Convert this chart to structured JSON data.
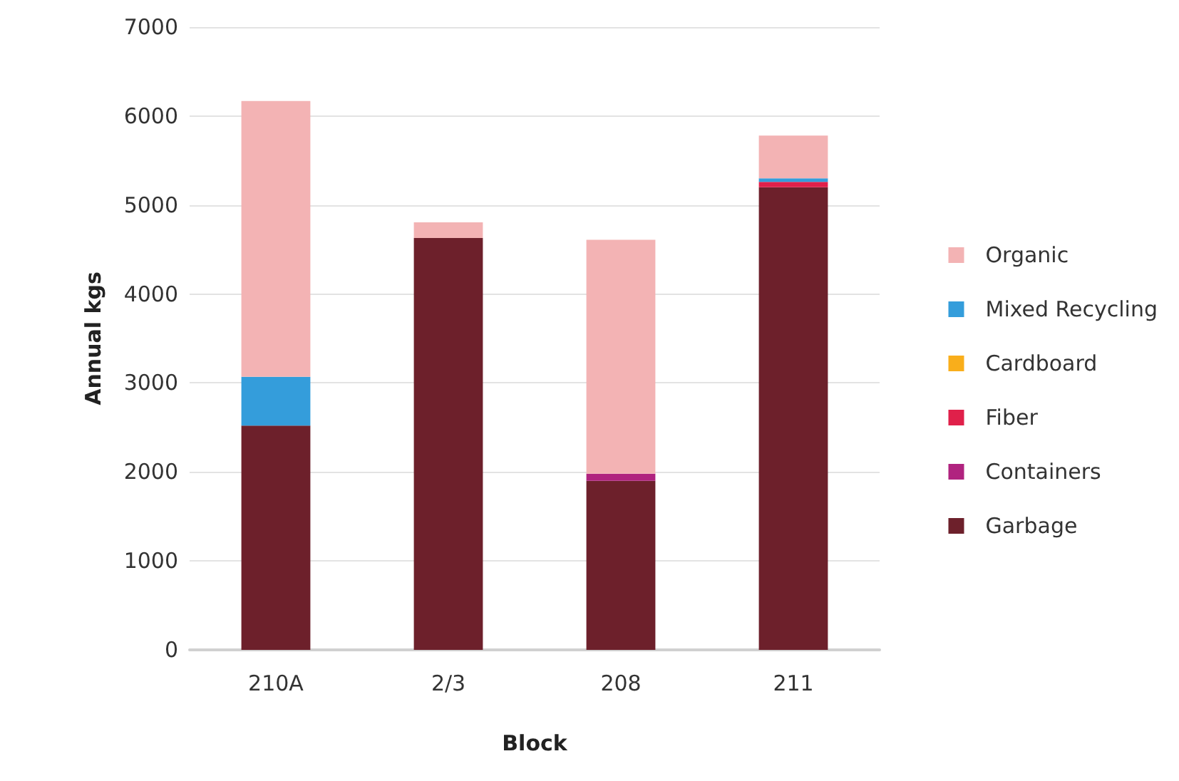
{
  "chart_data": {
    "type": "bar",
    "stacked": true,
    "xlabel": "Block",
    "ylabel": "Annual kgs",
    "categories": [
      "210A",
      "2/3",
      "208",
      "211"
    ],
    "series": [
      {
        "name": "Garbage",
        "color": "#6d202b",
        "values": [
          2520,
          4630,
          1900,
          5200
        ]
      },
      {
        "name": "Containers",
        "color": "#b0237f",
        "values": [
          0,
          0,
          80,
          0
        ]
      },
      {
        "name": "Fiber",
        "color": "#e0204a",
        "values": [
          0,
          0,
          0,
          60
        ]
      },
      {
        "name": "Cardboard",
        "color": "#f9ae1b",
        "values": [
          0,
          0,
          0,
          0
        ]
      },
      {
        "name": "Mixed Recycling",
        "color": "#349ddb",
        "values": [
          550,
          0,
          0,
          40
        ]
      },
      {
        "name": "Organic",
        "color": "#f3b3b4",
        "values": [
          3100,
          175,
          2630,
          480
        ]
      }
    ],
    "ylim": [
      0,
      7000
    ],
    "yticks": [
      0,
      1000,
      2000,
      3000,
      4000,
      5000,
      6000,
      7000
    ],
    "grid": "y",
    "legend": "right"
  }
}
